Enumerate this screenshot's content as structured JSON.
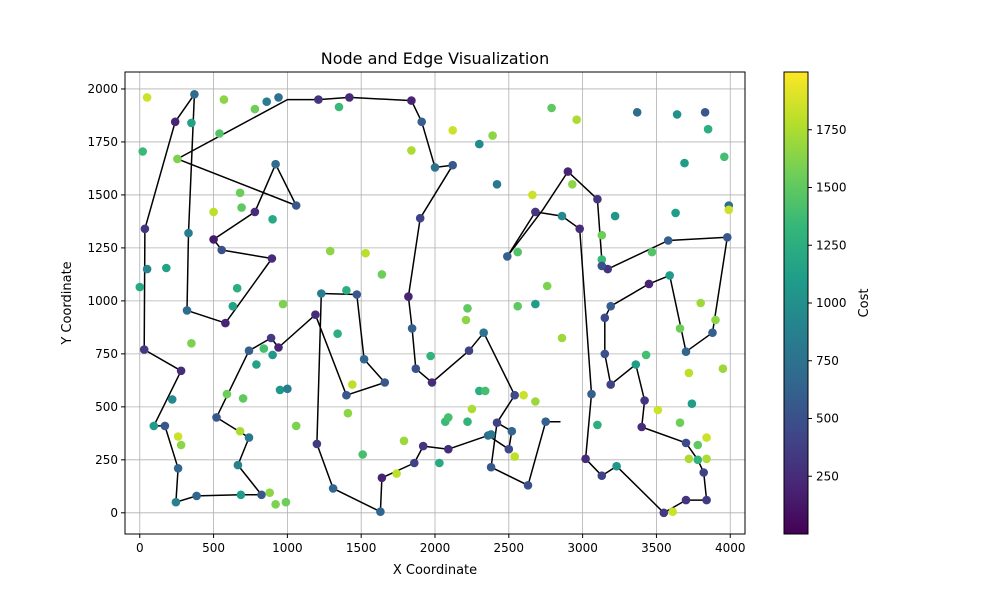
{
  "chart_data": {
    "type": "scatter",
    "title": "Node and Edge Visualization",
    "xlabel": "X Coordinate",
    "ylabel": "Y Coordinate",
    "xlim": [
      -100,
      4100
    ],
    "ylim": [
      -100,
      2080
    ],
    "x_ticks": [
      0,
      500,
      1000,
      1500,
      2000,
      2500,
      3000,
      3500,
      4000
    ],
    "y_ticks": [
      0,
      250,
      500,
      750,
      1000,
      1250,
      1500,
      1750,
      2000
    ],
    "grid": true,
    "colorbar": {
      "label": "Cost",
      "min": 0,
      "max": 2000,
      "ticks": [
        250,
        500,
        750,
        1000,
        1250,
        1500,
        1750
      ],
      "colormap": [
        "#440154",
        "#482878",
        "#3e4989",
        "#31688e",
        "#26828e",
        "#1f9e89",
        "#35b779",
        "#6ece58",
        "#b5de2b",
        "#fde725"
      ]
    },
    "path_color": "#000000",
    "path": [
      [
        580,
        895
      ],
      [
        895,
        1200
      ],
      [
        555,
        1240
      ],
      [
        500,
        1290
      ],
      [
        780,
        1420
      ],
      [
        920,
        1645
      ],
      [
        1060,
        1450
      ],
      [
        255,
        1670
      ],
      [
        1000,
        1950
      ],
      [
        1210,
        1950
      ],
      [
        1420,
        1960
      ],
      [
        1840,
        1945
      ],
      [
        1910,
        1845
      ],
      [
        2000,
        1630
      ],
      [
        2120,
        1640
      ],
      [
        1900,
        1390
      ],
      [
        1820,
        1020
      ],
      [
        1845,
        870
      ],
      [
        1870,
        680
      ],
      [
        1980,
        615
      ],
      [
        2230,
        765
      ],
      [
        2330,
        850
      ],
      [
        2540,
        555
      ],
      [
        2420,
        425
      ],
      [
        2520,
        385
      ],
      [
        2500,
        300
      ],
      [
        2360,
        365
      ],
      [
        2380,
        370
      ],
      [
        2090,
        300
      ],
      [
        1920,
        315
      ],
      [
        1860,
        235
      ],
      [
        1640,
        165
      ],
      [
        1630,
        5
      ],
      [
        1310,
        115
      ],
      [
        1200,
        325
      ],
      [
        1230,
        1035
      ],
      [
        1470,
        1030
      ],
      [
        1520,
        725
      ],
      [
        1660,
        615
      ],
      [
        1400,
        555
      ],
      [
        1190,
        935
      ],
      [
        940,
        780
      ],
      [
        890,
        825
      ],
      [
        740,
        765
      ],
      [
        520,
        450
      ],
      [
        740,
        355
      ],
      [
        665,
        225
      ],
      [
        825,
        85
      ],
      [
        685,
        85
      ],
      [
        385,
        80
      ],
      [
        245,
        50
      ],
      [
        260,
        210
      ],
      [
        170,
        410
      ],
      [
        95,
        410
      ],
      [
        280,
        670
      ],
      [
        30,
        770
      ],
      [
        35,
        1340
      ],
      [
        240,
        1845
      ],
      [
        370,
        1975
      ],
      [
        330,
        1320
      ],
      [
        320,
        955
      ],
      [
        580,
        895
      ]
    ],
    "path2": [
      [
        2490,
        1210
      ],
      [
        2680,
        1420
      ],
      [
        2860,
        1400
      ],
      [
        2980,
        1340
      ],
      [
        3060,
        560
      ],
      [
        3020,
        255
      ],
      [
        3130,
        175
      ],
      [
        3230,
        220
      ],
      [
        3550,
        0
      ],
      [
        3700,
        60
      ],
      [
        3840,
        60
      ],
      [
        3820,
        190
      ],
      [
        3780,
        250
      ],
      [
        3700,
        330
      ],
      [
        3400,
        405
      ],
      [
        3420,
        530
      ],
      [
        3360,
        700
      ],
      [
        3190,
        605
      ],
      [
        3150,
        750
      ],
      [
        3150,
        920
      ],
      [
        3190,
        975
      ],
      [
        3450,
        1080
      ],
      [
        3590,
        1120
      ],
      [
        3700,
        760
      ],
      [
        3880,
        850
      ],
      [
        3980,
        1300
      ],
      [
        3580,
        1285
      ],
      [
        3170,
        1150
      ],
      [
        3130,
        1195
      ],
      [
        3100,
        1480
      ],
      [
        2900,
        1610
      ],
      [
        2730,
        1430
      ],
      [
        2490,
        1210
      ]
    ],
    "path3": [
      [
        2850,
        430
      ],
      [
        2750,
        430
      ],
      [
        2630,
        130
      ],
      [
        2380,
        215
      ],
      [
        2420,
        425
      ]
    ],
    "points": [
      [
        50,
        1960,
        1850
      ],
      [
        570,
        1950,
        1650
      ],
      [
        780,
        1905,
        1550
      ],
      [
        860,
        1940,
        850
      ],
      [
        940,
        1960,
        750
      ],
      [
        1210,
        1950,
        300
      ],
      [
        1350,
        1915,
        1350
      ],
      [
        1420,
        1960,
        250
      ],
      [
        1840,
        1945,
        200
      ],
      [
        1910,
        1845,
        600
      ],
      [
        370,
        1975,
        700
      ],
      [
        240,
        1845,
        200
      ],
      [
        350,
        1840,
        1150
      ],
      [
        540,
        1790,
        1450
      ],
      [
        20,
        1705,
        1350
      ],
      [
        255,
        1670,
        1600
      ],
      [
        920,
        1645,
        700
      ],
      [
        680,
        1510,
        1550
      ],
      [
        1060,
        1450,
        550
      ],
      [
        780,
        1420,
        250
      ],
      [
        690,
        1440,
        1500
      ],
      [
        500,
        1420,
        1800
      ],
      [
        900,
        1385,
        1200
      ],
      [
        330,
        1320,
        850
      ],
      [
        35,
        1340,
        300
      ],
      [
        500,
        1290,
        150
      ],
      [
        555,
        1240,
        500
      ],
      [
        895,
        1200,
        250
      ],
      [
        50,
        1150,
        900
      ],
      [
        180,
        1155,
        1150
      ],
      [
        0,
        1065,
        1200
      ],
      [
        320,
        955,
        700
      ],
      [
        580,
        895,
        200
      ],
      [
        660,
        1060,
        1250
      ],
      [
        630,
        975,
        1150
      ],
      [
        970,
        985,
        1600
      ],
      [
        1230,
        1035,
        850
      ],
      [
        1190,
        935,
        250
      ],
      [
        350,
        800,
        1600
      ],
      [
        30,
        770,
        350
      ],
      [
        280,
        670,
        250
      ],
      [
        740,
        765,
        600
      ],
      [
        890,
        825,
        350
      ],
      [
        940,
        780,
        200
      ],
      [
        840,
        775,
        1400
      ],
      [
        900,
        745,
        1050
      ],
      [
        790,
        700,
        1150
      ],
      [
        590,
        560,
        1550
      ],
      [
        700,
        540,
        1500
      ],
      [
        520,
        450,
        550
      ],
      [
        220,
        535,
        950
      ],
      [
        95,
        410,
        1100
      ],
      [
        170,
        410,
        550
      ],
      [
        260,
        210,
        650
      ],
      [
        260,
        360,
        1850
      ],
      [
        280,
        320,
        1650
      ],
      [
        680,
        385,
        1750
      ],
      [
        740,
        355,
        800
      ],
      [
        665,
        225,
        900
      ],
      [
        685,
        85,
        1100
      ],
      [
        825,
        85,
        550
      ],
      [
        880,
        95,
        1650
      ],
      [
        920,
        40,
        1600
      ],
      [
        990,
        50,
        1550
      ],
      [
        385,
        80,
        650
      ],
      [
        245,
        50,
        900
      ],
      [
        950,
        580,
        1050
      ],
      [
        1000,
        585,
        850
      ],
      [
        1060,
        410,
        1600
      ],
      [
        1200,
        325,
        350
      ],
      [
        1310,
        115,
        650
      ],
      [
        1400,
        555,
        550
      ],
      [
        1520,
        725,
        650
      ],
      [
        1660,
        615,
        550
      ],
      [
        1440,
        605,
        1800
      ],
      [
        1410,
        470,
        1650
      ],
      [
        1510,
        275,
        1400
      ],
      [
        1630,
        5,
        650
      ],
      [
        1640,
        165,
        200
      ],
      [
        1740,
        185,
        1800
      ],
      [
        1790,
        340,
        1700
      ],
      [
        1860,
        235,
        400
      ],
      [
        1920,
        315,
        300
      ],
      [
        2030,
        235,
        1200
      ],
      [
        2070,
        430,
        1350
      ],
      [
        2090,
        450,
        1400
      ],
      [
        2090,
        300,
        250
      ],
      [
        2220,
        430,
        1300
      ],
      [
        2250,
        490,
        1750
      ],
      [
        2300,
        575,
        1250
      ],
      [
        2340,
        575,
        1400
      ],
      [
        2360,
        365,
        700
      ],
      [
        2380,
        370,
        800
      ],
      [
        2380,
        215,
        550
      ],
      [
        2420,
        425,
        400
      ],
      [
        2500,
        300,
        450
      ],
      [
        2520,
        385,
        650
      ],
      [
        2540,
        265,
        1800
      ],
      [
        2540,
        555,
        450
      ],
      [
        2600,
        555,
        1850
      ],
      [
        2630,
        130,
        500
      ],
      [
        2680,
        525,
        1700
      ],
      [
        2750,
        430,
        600
      ],
      [
        2330,
        850,
        750
      ],
      [
        2230,
        765,
        400
      ],
      [
        1980,
        615,
        250
      ],
      [
        1870,
        680,
        500
      ],
      [
        1970,
        740,
        1300
      ],
      [
        1845,
        870,
        600
      ],
      [
        1820,
        1020,
        200
      ],
      [
        1470,
        1030,
        550
      ],
      [
        1400,
        1050,
        1250
      ],
      [
        1340,
        845,
        1250
      ],
      [
        1640,
        1125,
        1550
      ],
      [
        1530,
        1225,
        1800
      ],
      [
        1290,
        1235,
        1650
      ],
      [
        2210,
        910,
        1650
      ],
      [
        2220,
        965,
        1500
      ],
      [
        2560,
        975,
        1500
      ],
      [
        2680,
        985,
        1100
      ],
      [
        2760,
        1070,
        1600
      ],
      [
        2860,
        825,
        1700
      ],
      [
        2490,
        1210,
        600
      ],
      [
        2560,
        1230,
        1450
      ],
      [
        1900,
        1390,
        400
      ],
      [
        2000,
        1630,
        750
      ],
      [
        2120,
        1640,
        550
      ],
      [
        2120,
        1805,
        1850
      ],
      [
        1840,
        1710,
        1750
      ],
      [
        2300,
        1740,
        950
      ],
      [
        2390,
        1780,
        1650
      ],
      [
        2420,
        1550,
        800
      ],
      [
        2660,
        1500,
        1850
      ],
      [
        2680,
        1420,
        300
      ],
      [
        2860,
        1400,
        950
      ],
      [
        2980,
        1340,
        250
      ],
      [
        2930,
        1550,
        1650
      ],
      [
        2900,
        1610,
        200
      ],
      [
        2790,
        1910,
        1500
      ],
      [
        2960,
        1855,
        1750
      ],
      [
        3100,
        1480,
        300
      ],
      [
        3130,
        1310,
        1550
      ],
      [
        3130,
        1195,
        1350
      ],
      [
        3170,
        1150,
        300
      ],
      [
        3130,
        1165,
        500
      ],
      [
        3220,
        1400,
        1050
      ],
      [
        3370,
        1890,
        700
      ],
      [
        3640,
        1880,
        1000
      ],
      [
        3830,
        1890,
        550
      ],
      [
        3850,
        1810,
        1250
      ],
      [
        3690,
        1650,
        1100
      ],
      [
        3960,
        1680,
        1400
      ],
      [
        3990,
        1450,
        700
      ],
      [
        3990,
        1430,
        1850
      ],
      [
        3630,
        1415,
        1100
      ],
      [
        3470,
        1230,
        1450
      ],
      [
        3580,
        1285,
        600
      ],
      [
        3980,
        1300,
        550
      ],
      [
        3590,
        1120,
        1100
      ],
      [
        3450,
        1080,
        200
      ],
      [
        3800,
        990,
        1700
      ],
      [
        3660,
        870,
        1550
      ],
      [
        3900,
        910,
        1650
      ],
      [
        3880,
        850,
        600
      ],
      [
        3700,
        760,
        650
      ],
      [
        3190,
        975,
        600
      ],
      [
        3150,
        920,
        450
      ],
      [
        3150,
        750,
        500
      ],
      [
        3190,
        605,
        400
      ],
      [
        3360,
        700,
        1100
      ],
      [
        3430,
        745,
        1400
      ],
      [
        3420,
        530,
        300
      ],
      [
        3400,
        405,
        250
      ],
      [
        3510,
        485,
        1850
      ],
      [
        3720,
        660,
        1800
      ],
      [
        3950,
        680,
        1700
      ],
      [
        3740,
        515,
        1100
      ],
      [
        3660,
        425,
        1550
      ],
      [
        3700,
        330,
        450
      ],
      [
        3780,
        320,
        1500
      ],
      [
        3840,
        355,
        1850
      ],
      [
        3720,
        255,
        1750
      ],
      [
        3820,
        190,
        400
      ],
      [
        3780,
        250,
        1300
      ],
      [
        3840,
        255,
        1750
      ],
      [
        3060,
        560,
        600
      ],
      [
        3020,
        255,
        250
      ],
      [
        3100,
        415,
        1250
      ],
      [
        3130,
        175,
        400
      ],
      [
        3230,
        220,
        1050
      ],
      [
        3550,
        0,
        350
      ],
      [
        3610,
        5,
        1850
      ],
      [
        3700,
        60,
        300
      ],
      [
        3840,
        60,
        350
      ]
    ]
  }
}
